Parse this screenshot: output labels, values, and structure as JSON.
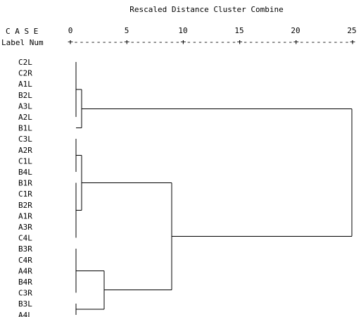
{
  "chart_data": {
    "type": "dendrogram",
    "title": "Rescaled Distance Cluster Combine",
    "header_case": "C A S E",
    "header_label": "Label",
    "header_num": "Num",
    "axis": {
      "ticks": [
        0,
        5,
        10,
        15,
        20,
        25
      ],
      "range": [
        0,
        25
      ],
      "ruler": "+---------+---------+---------+---------+---------+"
    },
    "leaves": [
      "C2L",
      "C2R",
      "A1L",
      "B2L",
      "A3L",
      "A2L",
      "B1L",
      "C3L",
      "A2R",
      "C1L",
      "B4L",
      "B1R",
      "C1R",
      "B2R",
      "A1R",
      "A3R",
      "C4L",
      "B3R",
      "C4R",
      "A4R",
      "B4R",
      "C3R",
      "B3L",
      "A4L"
    ],
    "merges": [
      {
        "children": [
          "C2L",
          "C2R",
          "A1L",
          "B2L",
          "A3L",
          "A2L"
        ],
        "distance": 0.5
      },
      {
        "children": [
          "C3L",
          "A2R",
          "C1L",
          "B4L"
        ],
        "distance": 0.5
      },
      {
        "children": [
          "B1R",
          "C1R",
          "B2R",
          "A1R",
          "A3R",
          "C4L"
        ],
        "distance": 0.5
      },
      {
        "children": [
          "B3R",
          "C4R",
          "A4R",
          "B4R",
          "C3R"
        ],
        "distance": 0.5
      },
      {
        "children": [
          "B3L",
          "A4L"
        ],
        "distance": 0.5
      },
      {
        "children": [
          "C3L+A2R+C1L+B4L",
          "B1R+C1R+B2R+A1R+A3R+C4L"
        ],
        "distance": 1.0
      },
      {
        "children": [
          "C2L+C2R+A1L+B2L+A3L+A2L",
          "B1L"
        ],
        "distance": 1.0
      },
      {
        "children": [
          "C3L..B4L+B1R..C4L"
        ],
        "distance": 1.0
      },
      {
        "children": [
          "B3R+C4R+A4R+B4R+C3R",
          "B3L+A4L"
        ],
        "distance": 3.0
      },
      {
        "children": [
          "C3L..C4L",
          "B3R..A4L"
        ],
        "distance": 9.0
      },
      {
        "children": [
          "C2L..B1L",
          "C3L..A4L"
        ],
        "distance": 25.0
      }
    ]
  }
}
